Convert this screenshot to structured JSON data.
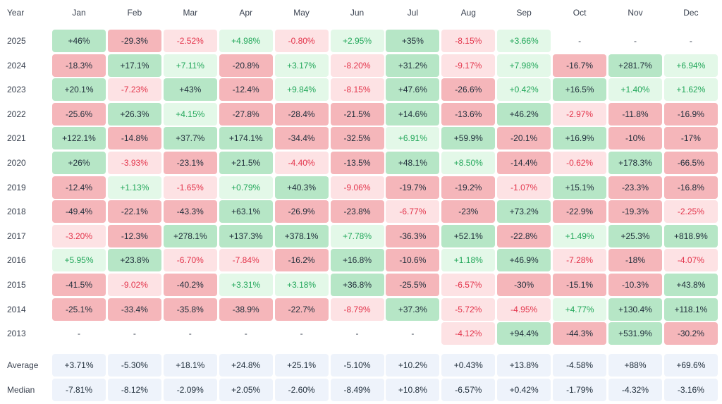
{
  "chart_data": {
    "type": "heatmap",
    "corner_label": "Year",
    "months": [
      "Jan",
      "Feb",
      "Mar",
      "Apr",
      "May",
      "Jun",
      "Jul",
      "Aug",
      "Sep",
      "Oct",
      "Nov",
      "Dec"
    ],
    "rows": [
      {
        "year": "2025",
        "values": [
          "+46%",
          "-29.3%",
          "-2.52%",
          "+4.98%",
          "-0.80%",
          "+2.95%",
          "+35%",
          "-8.15%",
          "+3.66%",
          "-",
          "-",
          "-"
        ]
      },
      {
        "year": "2024",
        "values": [
          "-18.3%",
          "+17.1%",
          "+7.11%",
          "-20.8%",
          "+3.17%",
          "-8.20%",
          "+31.2%",
          "-9.17%",
          "+7.98%",
          "-16.7%",
          "+281.7%",
          "+6.94%"
        ]
      },
      {
        "year": "2023",
        "values": [
          "+20.1%",
          "-7.23%",
          "+43%",
          "-12.4%",
          "+9.84%",
          "-8.15%",
          "+47.6%",
          "-26.6%",
          "+0.42%",
          "+16.5%",
          "+1.40%",
          "+1.62%"
        ]
      },
      {
        "year": "2022",
        "values": [
          "-25.6%",
          "+26.3%",
          "+4.15%",
          "-27.8%",
          "-28.4%",
          "-21.5%",
          "+14.6%",
          "-13.6%",
          "+46.2%",
          "-2.97%",
          "-11.8%",
          "-16.9%"
        ]
      },
      {
        "year": "2021",
        "values": [
          "+122.1%",
          "-14.8%",
          "+37.7%",
          "+174.1%",
          "-34.4%",
          "-32.5%",
          "+6.91%",
          "+59.9%",
          "-20.1%",
          "+16.9%",
          "-10%",
          "-17%"
        ]
      },
      {
        "year": "2020",
        "values": [
          "+26%",
          "-3.93%",
          "-23.1%",
          "+21.5%",
          "-4.40%",
          "-13.5%",
          "+48.1%",
          "+8.50%",
          "-14.4%",
          "-0.62%",
          "+178.3%",
          "-66.5%"
        ]
      },
      {
        "year": "2019",
        "values": [
          "-12.4%",
          "+1.13%",
          "-1.65%",
          "+0.79%",
          "+40.3%",
          "-9.06%",
          "-19.7%",
          "-19.2%",
          "-1.07%",
          "+15.1%",
          "-23.3%",
          "-16.8%"
        ]
      },
      {
        "year": "2018",
        "values": [
          "-49.4%",
          "-22.1%",
          "-43.3%",
          "+63.1%",
          "-26.9%",
          "-23.8%",
          "-6.77%",
          "-23%",
          "+73.2%",
          "-22.9%",
          "-19.3%",
          "-2.25%"
        ]
      },
      {
        "year": "2017",
        "values": [
          "-3.20%",
          "-12.3%",
          "+278.1%",
          "+137.3%",
          "+378.1%",
          "+7.78%",
          "-36.3%",
          "+52.1%",
          "-22.8%",
          "+1.49%",
          "+25.3%",
          "+818.9%"
        ]
      },
      {
        "year": "2016",
        "values": [
          "+5.95%",
          "+23.8%",
          "-6.70%",
          "-7.84%",
          "-16.2%",
          "+16.8%",
          "-10.6%",
          "+1.18%",
          "+46.9%",
          "-7.28%",
          "-18%",
          "-4.07%"
        ]
      },
      {
        "year": "2015",
        "values": [
          "-41.5%",
          "-9.02%",
          "-40.2%",
          "+3.31%",
          "+3.18%",
          "+36.8%",
          "-25.5%",
          "-6.57%",
          "-30%",
          "-15.1%",
          "-10.3%",
          "+43.8%"
        ]
      },
      {
        "year": "2014",
        "values": [
          "-25.1%",
          "-33.4%",
          "-35.8%",
          "-38.9%",
          "-22.7%",
          "-8.79%",
          "+37.3%",
          "-5.72%",
          "-4.95%",
          "+4.77%",
          "+130.4%",
          "+118.1%"
        ]
      },
      {
        "year": "2013",
        "values": [
          "-",
          "-",
          "-",
          "-",
          "-",
          "-",
          "-",
          "-4.12%",
          "+94.4%",
          "-44.3%",
          "+531.9%",
          "-30.2%"
        ]
      }
    ],
    "stats": [
      {
        "label": "Average",
        "values": [
          "+3.71%",
          "-5.30%",
          "+18.1%",
          "+24.8%",
          "+25.1%",
          "-5.10%",
          "+10.2%",
          "+0.43%",
          "+13.8%",
          "-4.58%",
          "+88%",
          "+69.6%"
        ]
      },
      {
        "label": "Median",
        "values": [
          "-7.81%",
          "-8.12%",
          "-2.09%",
          "+2.05%",
          "-2.60%",
          "-8.49%",
          "+10.8%",
          "-6.57%",
          "+0.42%",
          "-1.79%",
          "-4.32%",
          "-3.16%"
        ]
      }
    ],
    "colors": {
      "positive_strong": "#b6e6c6",
      "positive_weak": "#e3f8e8",
      "negative_strong": "#f5b6ba",
      "negative_weak": "#fde2e4",
      "positive_weak_text": "#22a75a",
      "negative_weak_text": "#e3344b",
      "stat_bg": "#eef3fb"
    }
  }
}
